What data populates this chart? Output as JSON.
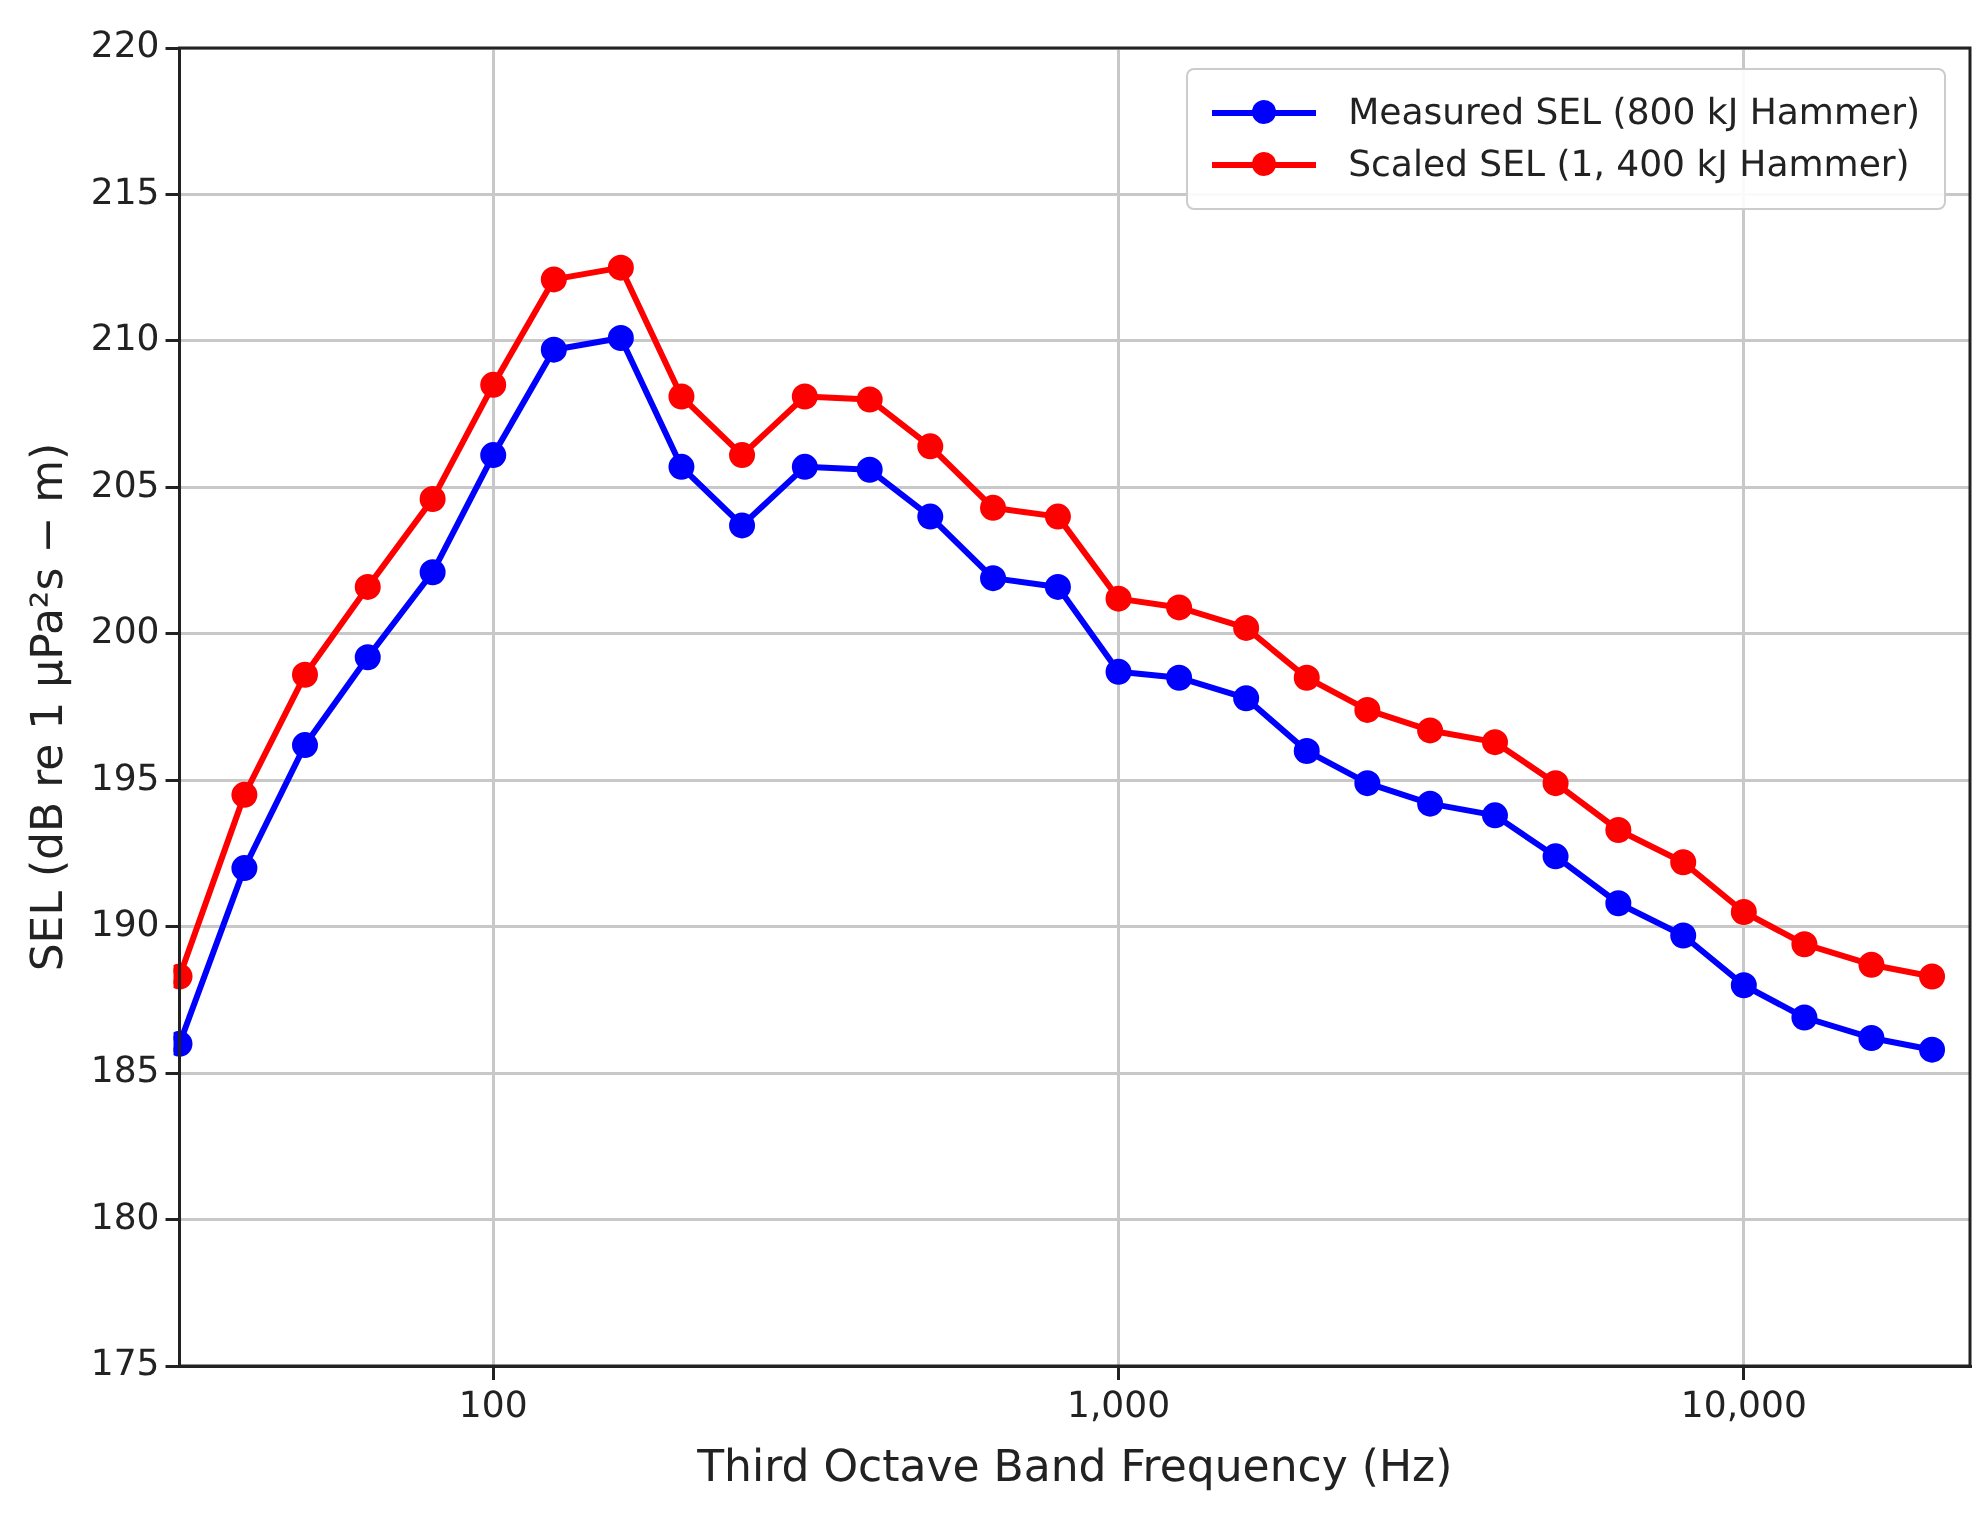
{
  "chart_data": {
    "type": "line",
    "xlabel": "Third Octave Band Frequency (Hz)",
    "ylabel": "SEL (dB re 1 μPa²s − m)",
    "x": [
      31.5,
      40,
      50,
      63,
      80,
      100,
      125,
      160,
      200,
      250,
      315,
      400,
      500,
      630,
      800,
      1000,
      1250,
      1600,
      2000,
      2500,
      3150,
      4000,
      5000,
      6300,
      8000,
      10000,
      12500,
      16000,
      20000
    ],
    "series": [
      {
        "name": "Measured SEL (800 kJ Hammer)",
        "color": "#0000ff",
        "values": [
          186.0,
          192.0,
          196.2,
          199.2,
          202.1,
          206.1,
          209.7,
          210.1,
          205.7,
          203.7,
          205.7,
          205.6,
          204.0,
          201.9,
          201.6,
          198.7,
          198.5,
          197.8,
          196.0,
          194.9,
          194.2,
          193.8,
          192.4,
          190.8,
          189.7,
          188.0,
          186.9,
          186.2,
          185.8
        ]
      },
      {
        "name": "Scaled SEL (1, 400 kJ Hammer)",
        "color": "#ff0000",
        "values": [
          188.3,
          194.5,
          198.6,
          201.6,
          204.6,
          208.5,
          212.1,
          212.5,
          208.1,
          206.1,
          208.1,
          208.0,
          206.4,
          204.3,
          204.0,
          201.2,
          200.9,
          200.2,
          198.5,
          197.4,
          196.7,
          196.3,
          194.9,
          193.3,
          192.2,
          190.5,
          189.4,
          188.7,
          188.3
        ]
      }
    ],
    "log": "x",
    "xlim": [
      31.5,
      23000
    ],
    "xticks": [
      {
        "value": 100,
        "label": "100"
      },
      {
        "value": 1000,
        "label": "1,000"
      },
      {
        "value": 10000,
        "label": "10,000"
      }
    ],
    "ylim": [
      175,
      220
    ],
    "yticks": [
      175,
      180,
      185,
      190,
      195,
      200,
      205,
      210,
      215,
      220
    ],
    "grid": true,
    "legend": "top right",
    "marker": "circle",
    "line_style": "solid"
  }
}
